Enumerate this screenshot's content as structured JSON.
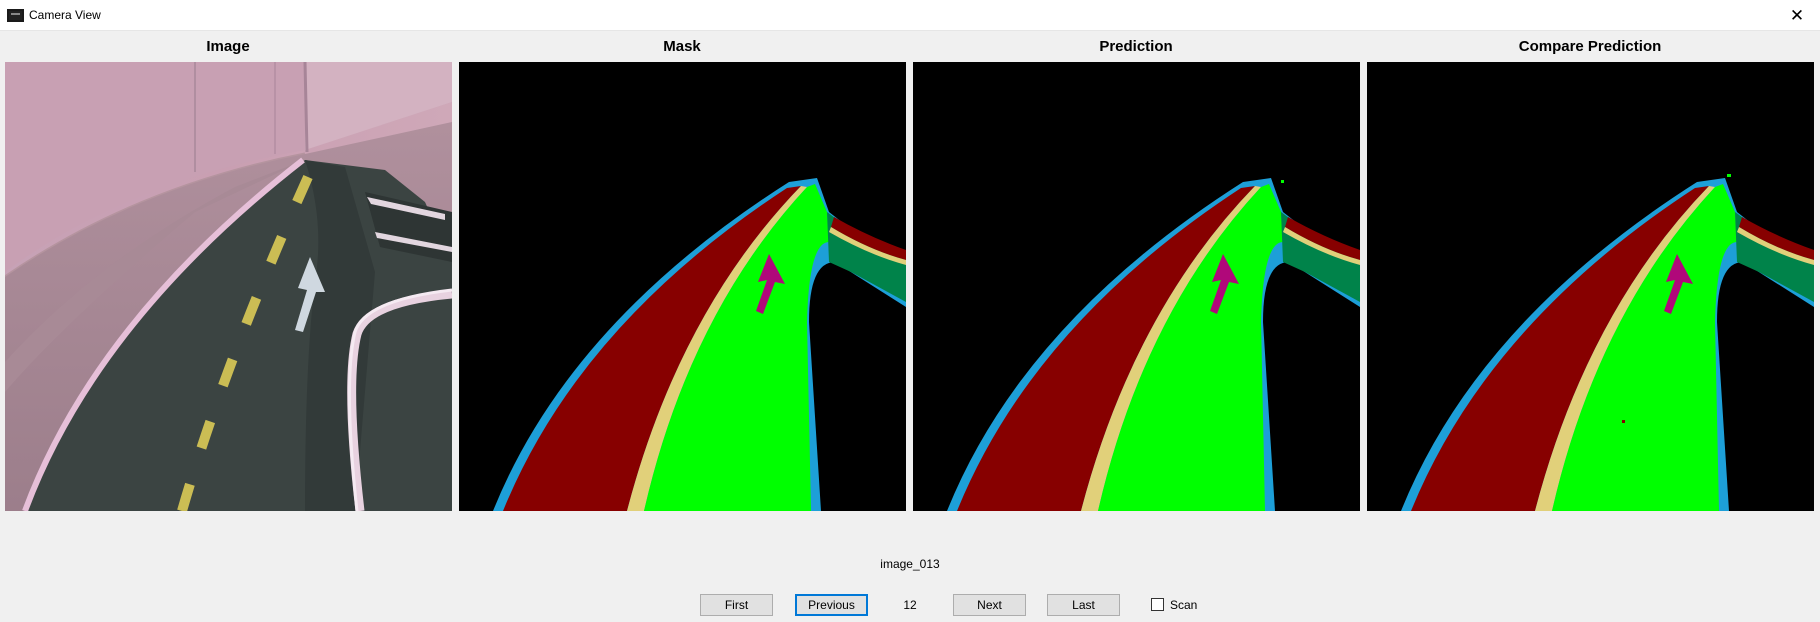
{
  "window": {
    "title": "Camera View",
    "app_icon": "camera-window-icon",
    "close_icon": "close-icon",
    "close_glyph": "✕"
  },
  "panels": [
    {
      "title": "Image"
    },
    {
      "title": "Mask"
    },
    {
      "title": "Prediction"
    },
    {
      "title": "Compare Prediction"
    }
  ],
  "segmentation_colors": {
    "background": "#000000",
    "road_left": "#870000",
    "road_right": "#00ff00",
    "lane_line": "#e1d07a",
    "road_edge": "#1d9fd8",
    "arrow": "#b0087a",
    "sidewalk": "#00834a"
  },
  "filename": "image_013",
  "controls": {
    "first_label": "First",
    "previous_label": "Previous",
    "page_number": "12",
    "next_label": "Next",
    "last_label": "Last",
    "scan_label": "Scan",
    "scan_checked": false
  }
}
